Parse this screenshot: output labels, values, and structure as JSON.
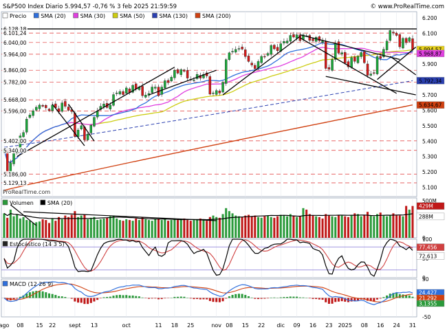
{
  "header": {
    "title": "S&P500 Index Diario 5.994,57 -0,76 % 3 feb 2025 21:59:59",
    "site": "© www.ProRealTime.com",
    "watermark": "ProRealTime.com"
  },
  "colors": {
    "background": "#ffffff",
    "frame": "#9aa6b8",
    "sma20": "#2f6fdc",
    "sma30": "#e040e0",
    "sma50": "#cccc10",
    "sma130": "#2a3fb0",
    "sma200": "#d04010",
    "candle_up": "#1aa83a",
    "candle_down": "#d41818",
    "volume_up": "#2a9a3a",
    "volume_down": "#c01818",
    "hline": "#e03030",
    "trendline": "#000000"
  },
  "chart_data": [
    {
      "type": "candlestick",
      "name": "S&P500 Index Diario",
      "legend": [
        {
          "label": "Precio",
          "color": "#000000"
        },
        {
          "label": "SMA (20)",
          "color": "#2f6fdc"
        },
        {
          "label": "SMA (30)",
          "color": "#e040e0"
        },
        {
          "label": "SMA (50)",
          "color": "#cccc10"
        },
        {
          "label": "SMA (130)",
          "color": "#2a3fb0"
        },
        {
          "label": "SMA (200)",
          "color": "#d04010"
        }
      ],
      "ylim": [
        5040,
        6240
      ],
      "y_ticks": [
        6200,
        6100,
        6000,
        5900,
        5800,
        5700,
        5600,
        5500,
        5400,
        5300,
        5200,
        5100
      ],
      "y_tick_labels": [
        "6.200",
        "6.100",
        "6.000",
        "5.900",
        "5.800",
        "5.700",
        "5.600",
        "5.500",
        "5.400",
        "5.300",
        "5.200",
        "5.100"
      ],
      "level_lines": [
        6128.18,
        6101.24,
        6040.0,
        5964.0,
        5860.0,
        5782.0,
        5668.0,
        5596.0,
        5402.0,
        5340.0,
        5186.0,
        5129.13
      ],
      "level_labels": [
        "6.128,18",
        "6.101,24",
        "6.040,00",
        "5.964,00",
        "5.860,00",
        "5.782,00",
        "5.668,00",
        "5.596,00",
        "5.402,00",
        "5.340,00",
        "5.186,00",
        "5.129,13"
      ],
      "current_values": [
        {
          "label": "5.994,57",
          "value": 5994.57,
          "color": "#e8d21a"
        },
        {
          "label": "5.968,87",
          "value": 5968.87,
          "color": "#e040e0"
        },
        {
          "label": "5.792,34",
          "value": 5792.34,
          "color": "#2a3fb0"
        },
        {
          "label": "5.634,67",
          "value": 5634.67,
          "color": "#d04010"
        }
      ],
      "close": [
        5346,
        5186,
        5260,
        5320,
        5345,
        5434,
        5456,
        5543,
        5570,
        5597,
        5620,
        5634,
        5626,
        5616,
        5597,
        5634,
        5617,
        5591,
        5648,
        5626,
        5600,
        5592,
        5430,
        5472,
        5500,
        5408,
        5445,
        5503,
        5554,
        5595,
        5626,
        5641,
        5618,
        5634,
        5702,
        5713,
        5722,
        5702,
        5745,
        5715,
        5762,
        5738,
        5752,
        5695,
        5699,
        5709,
        5751,
        5751,
        5695,
        5751,
        5792,
        5780,
        5815,
        5860,
        5841,
        5864,
        5853,
        5809,
        5797,
        5797,
        5833,
        5808,
        5833,
        5823,
        5705,
        5713,
        5728,
        5712,
        5782,
        5929,
        5973,
        5983,
        5995,
        6001,
        5997,
        5949,
        5917,
        5894,
        5870,
        5917,
        5950,
        5949,
        5969,
        6021,
        5999,
        5987,
        6032,
        6047,
        6050,
        6086,
        6075,
        6090,
        6052,
        6090,
        6084,
        6054,
        6051,
        6074,
        6051,
        6050,
        5872,
        5867,
        5930,
        6037,
        5971,
        5974,
        5906,
        5882,
        5942,
        5918,
        5950,
        5975,
        5909,
        5827,
        5836,
        5842,
        5949,
        5937,
        5996,
        6049,
        6118,
        6101,
        6086,
        6012,
        6067,
        6039,
        6071,
        5994
      ],
      "x_labels": [
        "ago",
        "08",
        "15",
        "22",
        "sept",
        "13",
        "oct",
        "11",
        "18",
        "25",
        "nov",
        "08",
        "15",
        "22",
        "dic",
        "09",
        "16",
        "23",
        "2025",
        "08",
        "16",
        "24",
        "31"
      ],
      "x_label_index": [
        0,
        5,
        11,
        15,
        22,
        28,
        38,
        48,
        53,
        58,
        66,
        70,
        75,
        80,
        86,
        91,
        96,
        101,
        106,
        112,
        117,
        122,
        127
      ]
    },
    {
      "type": "bar",
      "name": "Volumen",
      "legend": [
        {
          "label": "Volumen",
          "color": "#2a9a3a"
        },
        {
          "label": "SMA (20)",
          "color": "#000000"
        }
      ],
      "ylim": [
        0,
        500
      ],
      "y_ticks": [
        500,
        0
      ],
      "y_tick_labels": [
        "500M",
        "0"
      ],
      "current_values": [
        {
          "label": "429M",
          "value": 429,
          "color": "#ffffff"
        },
        {
          "label": "288M",
          "value": 288,
          "color": "#000000"
        }
      ],
      "values": [
        330,
        270,
        380,
        290,
        310,
        260,
        280,
        240,
        230,
        200,
        210,
        220,
        250,
        240,
        200,
        260,
        230,
        280,
        250,
        300,
        280,
        310,
        360,
        280,
        300,
        310,
        250,
        270,
        280,
        240,
        250,
        260,
        270,
        290,
        300,
        260,
        240,
        230,
        250,
        240,
        230,
        260,
        240,
        280,
        250,
        240,
        230,
        250,
        260,
        240,
        250,
        230,
        240,
        260,
        240,
        250,
        260,
        240,
        230,
        240,
        250,
        260,
        240,
        230,
        280,
        300,
        280,
        270,
        320,
        400,
        360,
        330,
        300,
        290,
        280,
        300,
        310,
        290,
        300,
        280,
        270,
        290,
        300,
        280,
        270,
        290,
        310,
        300,
        290,
        320,
        300,
        280,
        290,
        400,
        380,
        320,
        300,
        290,
        280,
        260,
        320,
        300,
        290,
        280,
        310,
        300,
        290,
        280,
        300,
        330,
        320,
        290,
        310,
        350,
        300,
        290,
        320,
        340,
        300,
        290,
        300,
        330,
        310,
        300,
        290,
        430,
        380,
        429
      ],
      "sma20_label": "SMA (20)"
    },
    {
      "type": "line",
      "name": "Estocástico (14 3 5)",
      "ylim": [
        0,
        100
      ],
      "y_ticks": [
        100,
        50,
        0
      ],
      "y_tick_labels": [
        "100",
        "50",
        "0"
      ],
      "bands": [
        80,
        20
      ],
      "current_values": [
        {
          "label": "77,456",
          "value": 77.456,
          "color": "#ffffff"
        },
        {
          "label": "72,613",
          "value": 72.613,
          "color": "#000000"
        }
      ]
    },
    {
      "type": "line",
      "name": "MACD (12 26 9)",
      "ylim": [
        -50,
        50
      ],
      "y_ticks": [
        50,
        0,
        -50
      ],
      "y_tick_labels": [
        "50",
        "0",
        "-50"
      ],
      "current_values": [
        {
          "label": "24,427",
          "value": 24.427,
          "color": "#2f6fdc"
        },
        {
          "label": "21,292",
          "value": 21.292,
          "color": "#d04010"
        },
        {
          "label": "3,1355",
          "value": 3.1355,
          "color": "#2a9a3a"
        }
      ]
    }
  ]
}
